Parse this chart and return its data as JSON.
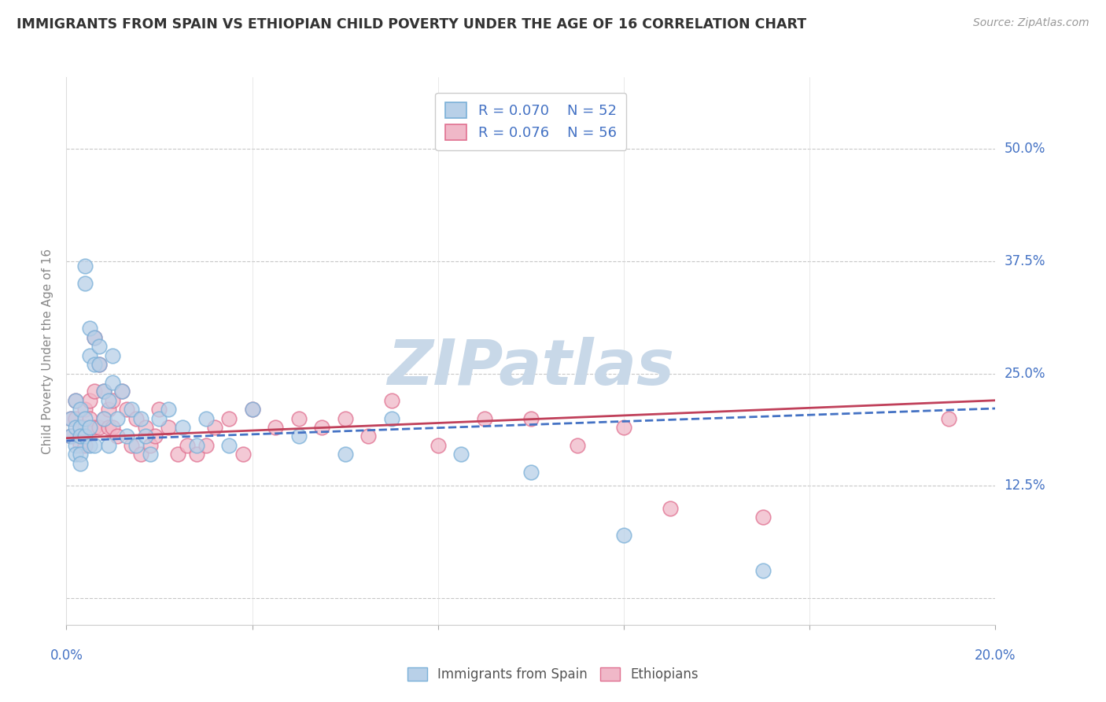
{
  "title": "IMMIGRANTS FROM SPAIN VS ETHIOPIAN CHILD POVERTY UNDER THE AGE OF 16 CORRELATION CHART",
  "source": "Source: ZipAtlas.com",
  "ylabel": "Child Poverty Under the Age of 16",
  "xlim": [
    0.0,
    0.2
  ],
  "ylim": [
    -0.03,
    0.58
  ],
  "yticks": [
    0.0,
    0.125,
    0.25,
    0.375,
    0.5
  ],
  "ytick_labels": [
    "",
    "12.5%",
    "25.0%",
    "37.5%",
    "50.0%"
  ],
  "xticks": [
    0.0,
    0.04,
    0.08,
    0.12,
    0.16,
    0.2
  ],
  "xtick_labels": [
    "0.0%",
    "",
    "",
    "",
    "",
    "20.0%"
  ],
  "series1_label": "Immigrants from Spain",
  "series1_R": "0.070",
  "series1_N": "52",
  "series1_color": "#b8d0e8",
  "series1_edge_color": "#7ab0d8",
  "series2_label": "Ethiopians",
  "series2_R": "0.076",
  "series2_N": "56",
  "series2_color": "#f0b8c8",
  "series2_edge_color": "#e07090",
  "trend1_color": "#4472c4",
  "trend2_color": "#c0405a",
  "trend1_style": "--",
  "trend2_style": "-",
  "background_color": "#ffffff",
  "grid_color": "#c8c8c8",
  "watermark": "ZIPatlas",
  "watermark_color": "#c8d8e8",
  "title_color": "#333333",
  "axis_label_color": "#888888",
  "tick_label_color": "#4472c4",
  "legend_R_color": "#4472c4",
  "series1_x": [
    0.001,
    0.001,
    0.002,
    0.002,
    0.002,
    0.002,
    0.003,
    0.003,
    0.003,
    0.003,
    0.003,
    0.004,
    0.004,
    0.004,
    0.004,
    0.005,
    0.005,
    0.005,
    0.005,
    0.006,
    0.006,
    0.006,
    0.007,
    0.007,
    0.008,
    0.008,
    0.009,
    0.009,
    0.01,
    0.01,
    0.011,
    0.012,
    0.013,
    0.014,
    0.015,
    0.016,
    0.017,
    0.018,
    0.02,
    0.022,
    0.025,
    0.028,
    0.03,
    0.035,
    0.04,
    0.05,
    0.06,
    0.07,
    0.085,
    0.1,
    0.12,
    0.15
  ],
  "series1_y": [
    0.2,
    0.18,
    0.22,
    0.19,
    0.17,
    0.16,
    0.21,
    0.19,
    0.18,
    0.16,
    0.15,
    0.37,
    0.35,
    0.2,
    0.18,
    0.3,
    0.27,
    0.19,
    0.17,
    0.29,
    0.26,
    0.17,
    0.28,
    0.26,
    0.23,
    0.2,
    0.22,
    0.17,
    0.27,
    0.24,
    0.2,
    0.23,
    0.18,
    0.21,
    0.17,
    0.2,
    0.18,
    0.16,
    0.2,
    0.21,
    0.19,
    0.17,
    0.2,
    0.17,
    0.21,
    0.18,
    0.16,
    0.2,
    0.16,
    0.14,
    0.07,
    0.03
  ],
  "series2_x": [
    0.001,
    0.001,
    0.002,
    0.002,
    0.003,
    0.003,
    0.003,
    0.004,
    0.004,
    0.004,
    0.005,
    0.005,
    0.006,
    0.006,
    0.006,
    0.007,
    0.007,
    0.008,
    0.008,
    0.009,
    0.009,
    0.01,
    0.01,
    0.011,
    0.012,
    0.013,
    0.014,
    0.015,
    0.016,
    0.017,
    0.018,
    0.019,
    0.02,
    0.022,
    0.024,
    0.026,
    0.028,
    0.03,
    0.032,
    0.035,
    0.038,
    0.04,
    0.045,
    0.05,
    0.055,
    0.06,
    0.065,
    0.07,
    0.08,
    0.09,
    0.1,
    0.11,
    0.12,
    0.13,
    0.15,
    0.19
  ],
  "series2_y": [
    0.2,
    0.18,
    0.22,
    0.2,
    0.19,
    0.18,
    0.17,
    0.21,
    0.19,
    0.17,
    0.22,
    0.2,
    0.29,
    0.23,
    0.19,
    0.26,
    0.19,
    0.23,
    0.2,
    0.21,
    0.19,
    0.22,
    0.19,
    0.18,
    0.23,
    0.21,
    0.17,
    0.2,
    0.16,
    0.19,
    0.17,
    0.18,
    0.21,
    0.19,
    0.16,
    0.17,
    0.16,
    0.17,
    0.19,
    0.2,
    0.16,
    0.21,
    0.19,
    0.2,
    0.19,
    0.2,
    0.18,
    0.22,
    0.17,
    0.2,
    0.2,
    0.17,
    0.19,
    0.1,
    0.09,
    0.2
  ]
}
